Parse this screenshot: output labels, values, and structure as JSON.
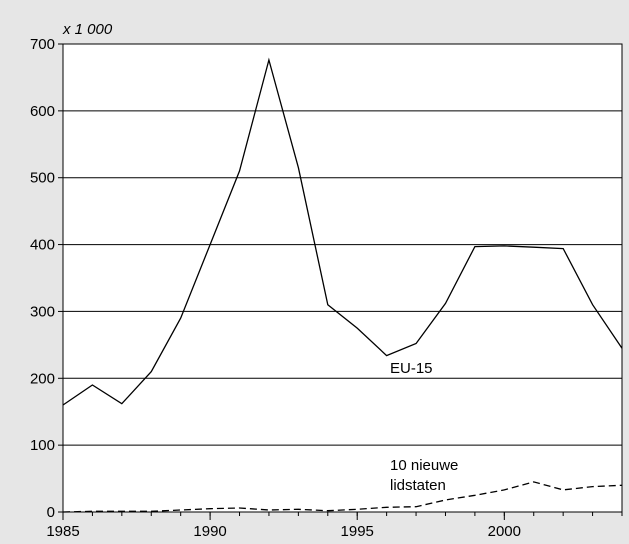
{
  "chart_data": {
    "type": "line",
    "unit_label": "x 1 000",
    "xlim": [
      1985,
      2004
    ],
    "ylim": [
      0,
      700
    ],
    "x_ticks": [
      1985,
      1990,
      1995,
      2000
    ],
    "y_ticks": [
      0,
      100,
      200,
      300,
      400,
      500,
      600,
      700
    ],
    "grid": true,
    "background_color": "#e6e6e6",
    "plot_background_color": "#ffffff",
    "series": [
      {
        "name": "EU-15",
        "style": "solid",
        "color": "#000000",
        "x": [
          1985,
          1986,
          1987,
          1988,
          1989,
          1990,
          1991,
          1992,
          1993,
          1994,
          1995,
          1996,
          1997,
          1998,
          1999,
          2000,
          2001,
          2002,
          2003,
          2004
        ],
        "values": [
          160,
          190,
          162,
          210,
          290,
          400,
          510,
          676,
          515,
          310,
          275,
          234,
          252,
          312,
          397,
          398,
          396,
          394,
          310,
          245
        ]
      },
      {
        "name": "10 nieuwe lidstaten",
        "style": "dashed",
        "color": "#000000",
        "x": [
          1985,
          1986,
          1987,
          1988,
          1989,
          1990,
          1991,
          1992,
          1993,
          1994,
          1995,
          1996,
          1997,
          1998,
          1999,
          2000,
          2001,
          2002,
          2003,
          2004
        ],
        "values": [
          0,
          1,
          1,
          1,
          3,
          5,
          6,
          3,
          4,
          2,
          4,
          7,
          8,
          18,
          25,
          33,
          45,
          33,
          38,
          40
        ]
      }
    ],
    "annotations": [
      {
        "series": 0,
        "lines": [
          "EU-15"
        ]
      },
      {
        "series": 1,
        "lines": [
          "10 nieuwe",
          "lidstaten"
        ]
      }
    ]
  }
}
